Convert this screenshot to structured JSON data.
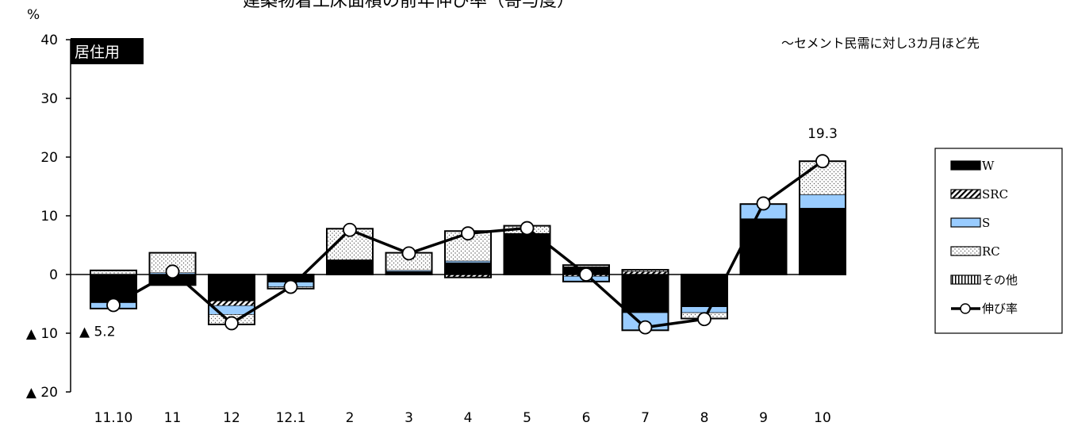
{
  "chart_data": {
    "type": "bar",
    "title": "建築物着工床面積の前年伸び率（寄与度）",
    "ylabel": "%",
    "subtitle": "居住用",
    "note": "～セメント民需に対し3カ月ほど先",
    "ylim": [
      -20,
      40
    ],
    "yticks": [
      {
        "value": 40,
        "label": "40"
      },
      {
        "value": 30,
        "label": "30"
      },
      {
        "value": 20,
        "label": "20"
      },
      {
        "value": 10,
        "label": "10"
      },
      {
        "value": 0,
        "label": "0"
      },
      {
        "value": -10,
        "label": "▲ 10"
      },
      {
        "value": -20,
        "label": "▲ 20"
      }
    ],
    "categories": [
      "11.10",
      "11",
      "12",
      "12.1",
      "2",
      "3",
      "4",
      "5",
      "6",
      "7",
      "8",
      "9",
      "10"
    ],
    "series": [
      {
        "name": "W",
        "color": "#000000",
        "pattern": "solid",
        "values": [
          -4.8,
          -1.8,
          -4.5,
          -1.3,
          2.5,
          0.5,
          2.0,
          7.0,
          1.3,
          -6.5,
          -5.5,
          9.5,
          11.3
        ]
      },
      {
        "name": "SRC",
        "color": "#000000",
        "pattern": "diagonal",
        "values": [
          0,
          0,
          -0.8,
          0,
          0,
          0,
          -0.5,
          0,
          -0.3,
          0.5,
          0,
          0,
          0
        ]
      },
      {
        "name": "S",
        "color": "#99ccff",
        "pattern": "solid",
        "values": [
          -1.0,
          0.3,
          -1.5,
          -0.8,
          0,
          0.2,
          0.3,
          0,
          -0.9,
          -3.0,
          -1.0,
          2.5,
          2.3
        ]
      },
      {
        "name": "RC",
        "color": "#ffffff",
        "pattern": "dotted",
        "values": [
          0.7,
          3.4,
          -1.7,
          -0.3,
          5.3,
          3.0,
          5.1,
          1.3,
          0.3,
          0.3,
          -1.0,
          0,
          5.7
        ]
      },
      {
        "name": "その他",
        "color": "#ffffff",
        "pattern": "vertical",
        "values": [
          0,
          0,
          0,
          0,
          0,
          0,
          0,
          0,
          0,
          0,
          0,
          0,
          0
        ]
      }
    ],
    "line": {
      "name": "伸び率",
      "values": [
        -5.2,
        0.5,
        -8.3,
        -2.1,
        7.6,
        3.6,
        7.0,
        7.9,
        0.0,
        -9.0,
        -7.6,
        12.1,
        19.3
      ]
    },
    "data_labels": [
      {
        "index": 0,
        "text": "▲ 5.2"
      },
      {
        "index": 12,
        "text": "19.3"
      }
    ],
    "legend_position": "right"
  }
}
